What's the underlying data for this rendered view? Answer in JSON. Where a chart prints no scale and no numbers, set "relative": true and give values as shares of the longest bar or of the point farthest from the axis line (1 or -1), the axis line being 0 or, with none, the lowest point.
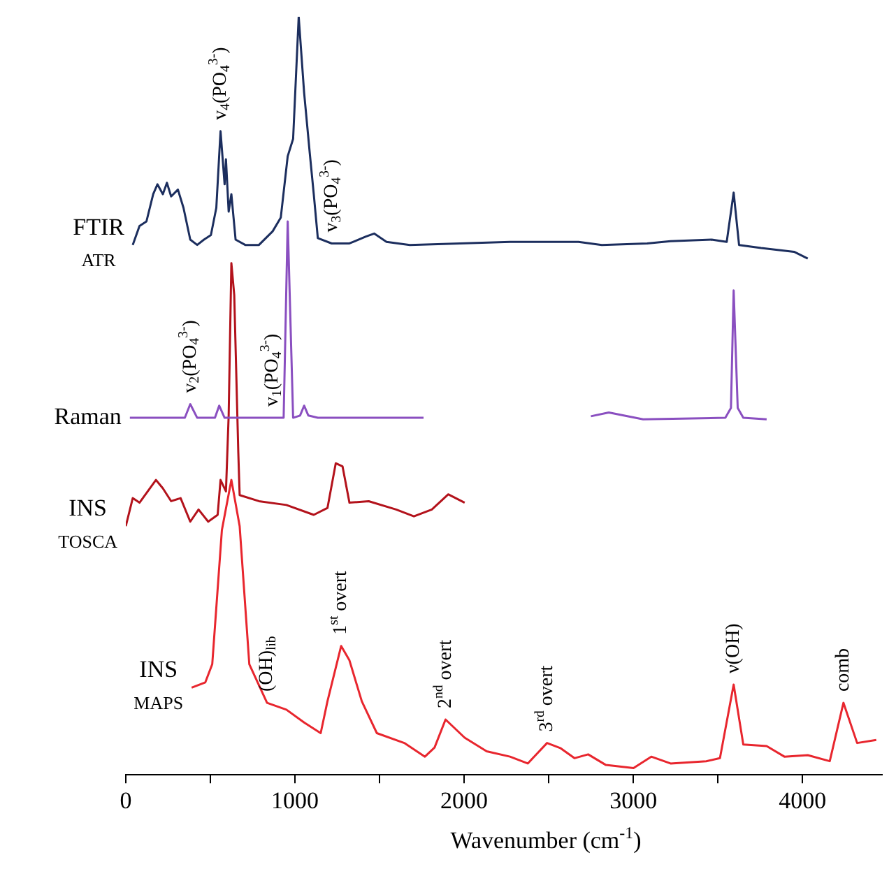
{
  "chart_data": {
    "type": "line",
    "relative": true,
    "xlabel": "Wavenumber (cm$^{-1}$)",
    "xlim": [
      0,
      4470
    ],
    "xticks": [
      0,
      {
        "value": 500,
        "label": null
      },
      1000,
      {
        "value": 1500,
        "label": null
      },
      2000,
      {
        "value": 2500,
        "label": null
      },
      3000,
      {
        "value": 3500,
        "label": null
      },
      4000
    ],
    "grid": false,
    "legend": false,
    "marker": "none",
    "line_style": "solid",
    "series": [
      {
        "name": "FTIR\nATR",
        "color": "#1c2e5e",
        "x": [
          41,
          81,
          122,
          162,
          187,
          219,
          243,
          268,
          308,
          341,
          381,
          422,
          462,
          503,
          535,
          560,
          584,
          592,
          608,
          624,
          649,
          706,
          787,
          868,
          916,
          957,
          989,
          1022,
          1054,
          1087,
          1111,
          1135,
          1217,
          1322,
          1419,
          1468,
          1541,
          1679,
          2271,
          2676,
          2814,
          3082,
          3220,
          3463,
          3552,
          3593,
          3625,
          3755,
          3950,
          4031
        ],
        "values": [
          0.699,
          0.724,
          0.73,
          0.766,
          0.779,
          0.766,
          0.781,
          0.763,
          0.772,
          0.748,
          0.706,
          0.699,
          0.706,
          0.712,
          0.748,
          0.849,
          0.779,
          0.812,
          0.743,
          0.766,
          0.706,
          0.699,
          0.699,
          0.717,
          0.735,
          0.816,
          0.839,
          1.0,
          0.9,
          0.821,
          0.766,
          0.708,
          0.701,
          0.701,
          0.71,
          0.714,
          0.703,
          0.699,
          0.703,
          0.703,
          0.699,
          0.701,
          0.704,
          0.706,
          0.703,
          0.768,
          0.699,
          0.695,
          0.69,
          0.681
        ]
      },
      {
        "name": "Raman",
        "color": "#8a4fc0",
        "x": [
          24,
          243,
          349,
          381,
          422,
          527,
          552,
          584,
          868,
          933,
          957,
          989,
          1030,
          1054,
          1079,
          1135,
          1760,
          2200,
          2749,
          2855,
          3058,
          3544,
          3577,
          3593,
          3617,
          3650,
          3788
        ],
        "values": [
          0.471,
          0.471,
          0.471,
          0.489,
          0.471,
          0.471,
          0.487,
          0.471,
          0.471,
          0.471,
          0.73,
          0.471,
          0.474,
          0.487,
          0.474,
          0.471,
          0.471,
          null,
          0.473,
          0.478,
          0.469,
          0.471,
          0.484,
          0.639,
          0.484,
          0.471,
          0.469
        ]
      },
      {
        "name": "INS\nTOSCA",
        "color": "#b3121b",
        "x": [
          0,
          41,
          81,
          178,
          219,
          268,
          324,
          381,
          430,
          487,
          543,
          560,
          592,
          608,
          624,
          641,
          665,
          673,
          787,
          949,
          1111,
          1192,
          1241,
          1281,
          1322,
          1436,
          1598,
          1703,
          1809,
          1906,
          2003
        ],
        "values": [
          0.328,
          0.365,
          0.359,
          0.389,
          0.378,
          0.361,
          0.365,
          0.334,
          0.35,
          0.334,
          0.343,
          0.389,
          0.374,
          0.474,
          0.675,
          0.633,
          0.425,
          0.369,
          0.361,
          0.356,
          0.343,
          0.352,
          0.411,
          0.407,
          0.359,
          0.361,
          0.35,
          0.341,
          0.35,
          0.37,
          0.359
        ]
      },
      {
        "name": "INS\nMAPS",
        "color": "#e8262e",
        "x": [
          389,
          470,
          511,
          568,
          624,
          673,
          730,
          835,
          949,
          1054,
          1152,
          1192,
          1273,
          1322,
          1395,
          1484,
          1646,
          1768,
          1825,
          1890,
          2003,
          2133,
          2271,
          2376,
          2490,
          2571,
          2652,
          2733,
          2838,
          3001,
          3106,
          3220,
          3431,
          3512,
          3593,
          3650,
          3788,
          3893,
          4031,
          4161,
          4242,
          4323,
          4436
        ],
        "values": [
          0.115,
          0.122,
          0.146,
          0.323,
          0.389,
          0.328,
          0.146,
          0.095,
          0.086,
          0.069,
          0.055,
          0.097,
          0.17,
          0.151,
          0.097,
          0.055,
          0.042,
          0.024,
          0.036,
          0.073,
          0.049,
          0.031,
          0.024,
          0.015,
          0.042,
          0.035,
          0.022,
          0.027,
          0.013,
          0.009,
          0.024,
          0.015,
          0.018,
          0.022,
          0.119,
          0.04,
          0.038,
          0.024,
          0.026,
          0.018,
          0.095,
          0.042,
          0.046
        ]
      }
    ],
    "annotations": [
      {
        "text": "v$_{4}$(PO$_{4}$$^{3-}$)",
        "x": 560,
        "y": 0.849
      },
      {
        "text": "v$_{3}$(PO$_{4}$$^{3-}$)",
        "x": 1217,
        "y": 0.701
      },
      {
        "text": "v$_{2}$(PO$_{4}$$^{3-}$)",
        "x": 381,
        "y": 0.489
      },
      {
        "text": "v$_{1}$(PO$_{4}$$^{3-}$)",
        "x": 868,
        "y": 0.471
      },
      {
        "text": "(OH)$_{lib}$",
        "x": 835,
        "y": 0.095
      },
      {
        "text": "1$^{st}$ overt",
        "x": 1273,
        "y": 0.17
      },
      {
        "text": "2$^{nd}$ overt",
        "x": 1890,
        "y": 0.073
      },
      {
        "text": "3$^{rd}$ overt",
        "x": 2490,
        "y": 0.042
      },
      {
        "text": "ν(OH)",
        "x": 3593,
        "y": 0.119
      },
      {
        "text": "comb",
        "x": 4242,
        "y": 0.095
      }
    ]
  }
}
